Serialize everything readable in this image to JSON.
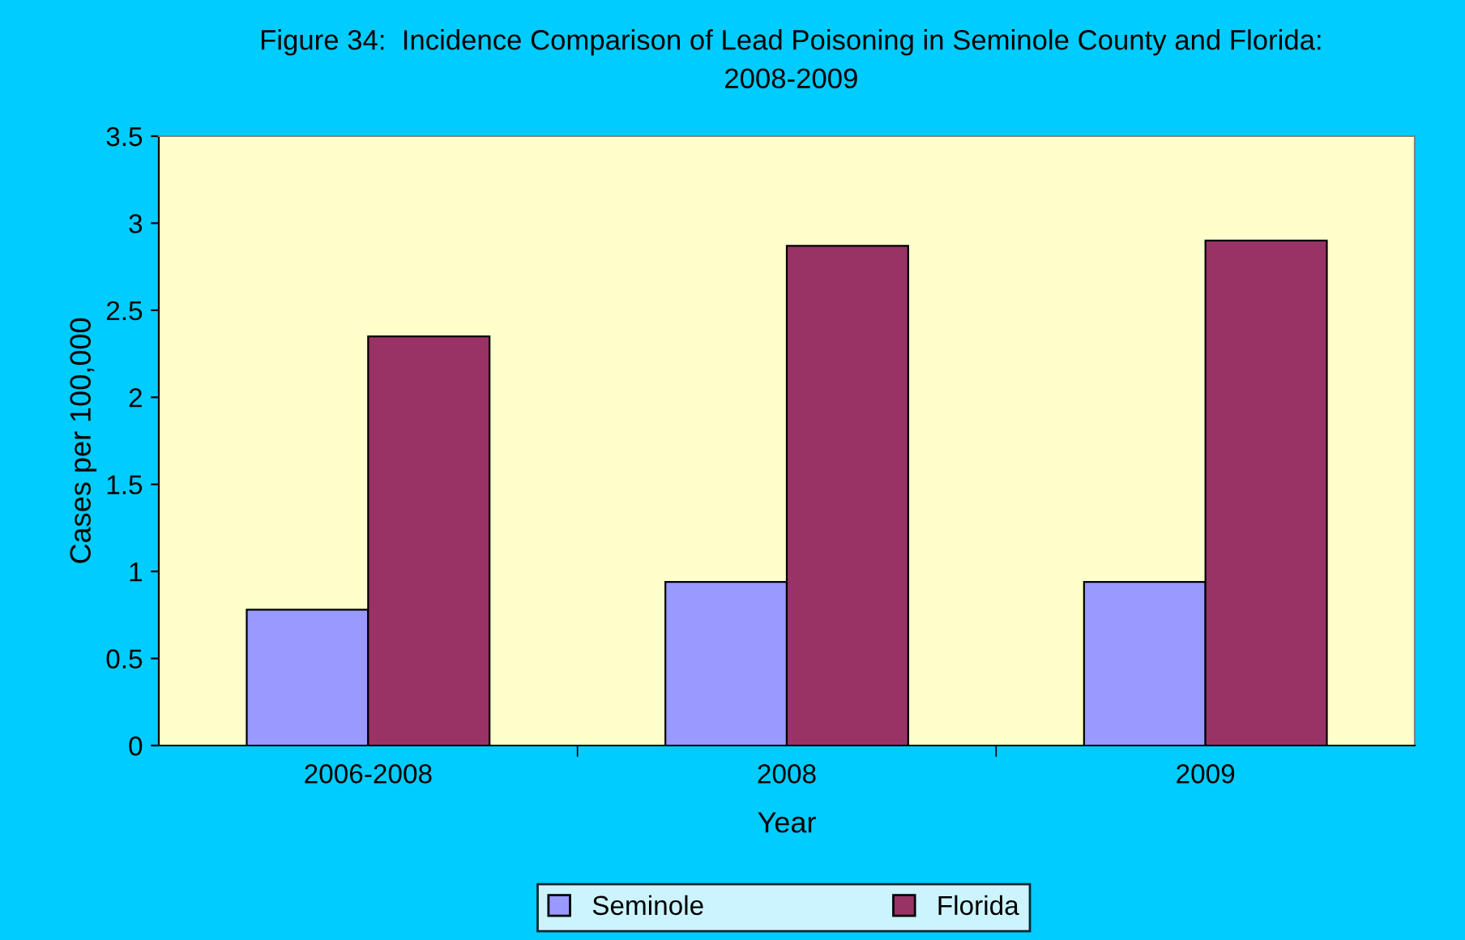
{
  "chart_data": {
    "type": "bar",
    "title": "Figure 34:  Incidence Comparison of Lead Poisoning in Seminole County and Florida:\n2008-2009",
    "xlabel": "Year",
    "ylabel": "Cases per 100,000",
    "categories": [
      "2006-2008",
      "2008",
      "2009"
    ],
    "series": [
      {
        "name": "Seminole",
        "color": "#9999ff",
        "values": [
          0.78,
          0.94,
          0.94
        ]
      },
      {
        "name": "Florida",
        "color": "#993366",
        "values": [
          2.35,
          2.87,
          2.9
        ]
      }
    ],
    "ylim": [
      0,
      3.5
    ],
    "yticks": [
      0,
      0.5,
      1,
      1.5,
      2,
      2.5,
      3,
      3.5
    ],
    "grid": false,
    "legend": "bottom"
  }
}
